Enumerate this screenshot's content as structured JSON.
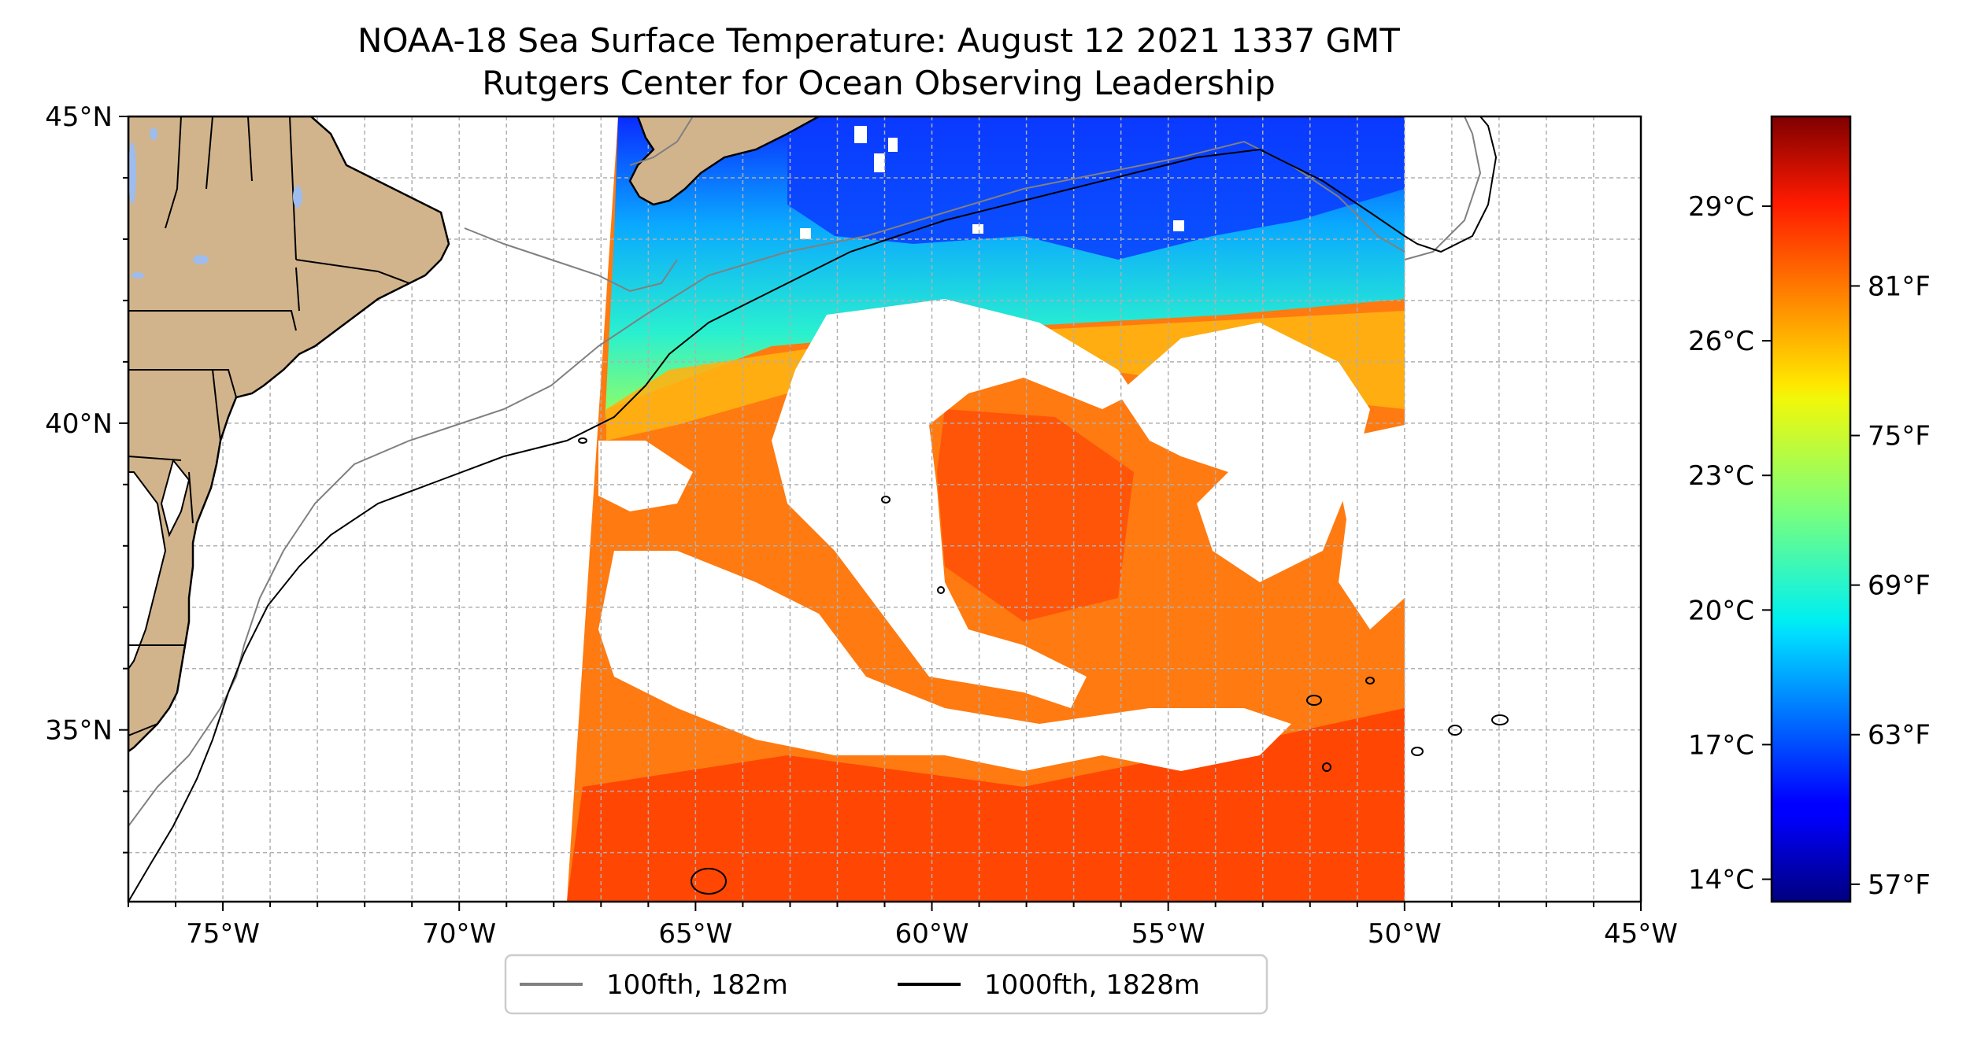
{
  "title": {
    "line1": "NOAA-18 Sea Surface Temperature: August 12 2021 1337 GMT",
    "line2": "Rutgers Center for Ocean Observing Leadership"
  },
  "map": {
    "lon_range": [
      -77,
      -45
    ],
    "lat_range": [
      32.2,
      45
    ],
    "gridlines": true,
    "swath_lon_east": -50,
    "lon_ticks": [
      {
        "value": -75,
        "label": "75°W"
      },
      {
        "value": -70,
        "label": "70°W"
      },
      {
        "value": -65,
        "label": "65°W"
      },
      {
        "value": -60,
        "label": "60°W"
      },
      {
        "value": -55,
        "label": "55°W"
      },
      {
        "value": -50,
        "label": "50°W"
      },
      {
        "value": -45,
        "label": "45°W"
      }
    ],
    "lat_ticks": [
      {
        "value": 45,
        "label": "45°N"
      },
      {
        "value": 40,
        "label": "40°N"
      },
      {
        "value": 35,
        "label": "35°N"
      }
    ]
  },
  "legend": {
    "placement": "bottom-center",
    "items": [
      {
        "label": "100fth, 182m",
        "color": "#808080"
      },
      {
        "label": "1000fth, 1828m",
        "color": "#000000"
      }
    ]
  },
  "colorbar": {
    "colormap": "jet",
    "range_c": [
      13.5,
      31.0
    ],
    "celsius_ticks": [
      {
        "value": 29,
        "label": "29°C"
      },
      {
        "value": 26,
        "label": "26°C"
      },
      {
        "value": 23,
        "label": "23°C"
      },
      {
        "value": 20,
        "label": "20°C"
      },
      {
        "value": 17,
        "label": "17°C"
      },
      {
        "value": 14,
        "label": "14°C"
      }
    ],
    "fahrenheit_ticks": [
      {
        "value": 81,
        "label": "81°F"
      },
      {
        "value": 75,
        "label": "75°F"
      },
      {
        "value": 69,
        "label": "69°F"
      },
      {
        "value": 63,
        "label": "63°F"
      },
      {
        "value": 57,
        "label": "57°F"
      }
    ]
  },
  "colors": {
    "land": "#d2b48c",
    "lakes": "#9ebcec",
    "grid": "#b0b0b0"
  }
}
